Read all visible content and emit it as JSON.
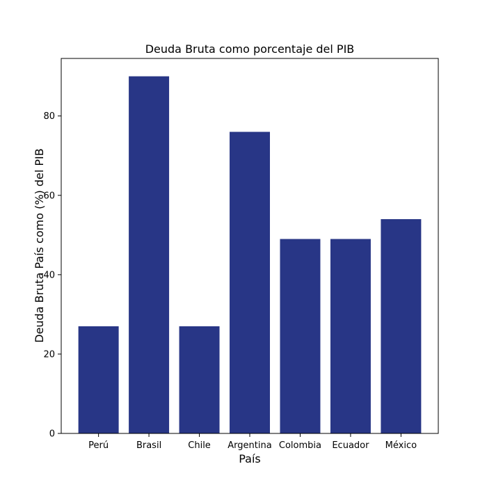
{
  "chart_data": {
    "type": "bar",
    "title": "Deuda Bruta como porcentaje del PIB",
    "xlabel": "País",
    "ylabel": "Deuda Bruta País como (%) del PIB",
    "categories": [
      "Perú",
      "Brasil",
      "Chile",
      "Argentina",
      "Colombia",
      "Ecuador",
      "México"
    ],
    "values": [
      27,
      90,
      27,
      76,
      49,
      49,
      54
    ],
    "ylim": [
      0,
      94.5
    ],
    "yticks": [
      0,
      20,
      40,
      60,
      80
    ],
    "bar_color": "#283686",
    "grid": false,
    "legend": "none"
  }
}
